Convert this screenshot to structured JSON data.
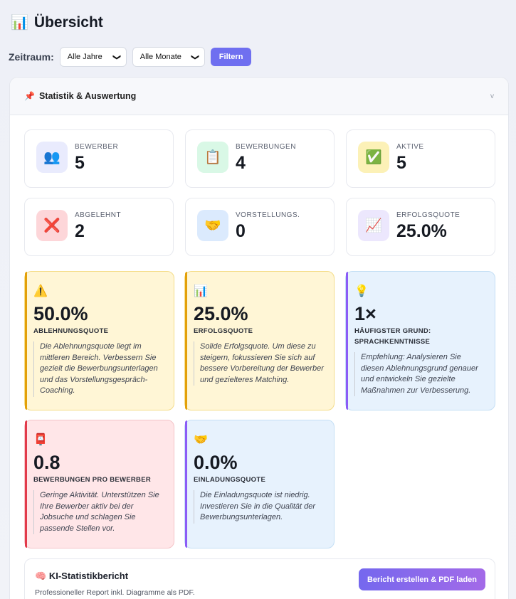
{
  "header": {
    "icon": "📊",
    "title": "Übersicht"
  },
  "filter": {
    "label": "Zeitraum:",
    "year_value": "Alle Jahre",
    "month_value": "Alle Monate",
    "button": "Filtern"
  },
  "panel": {
    "pin_icon": "📌",
    "title": "Statistik & Auswertung",
    "collapse_glyph": "v"
  },
  "stats": [
    {
      "icon": "👥",
      "label": "Bewerber",
      "value": "5",
      "color": "#e9ebfd"
    },
    {
      "icon": "📋",
      "label": "Bewerbungen",
      "value": "4",
      "color": "#d9f8e6"
    },
    {
      "icon": "✅",
      "label": "Aktive",
      "value": "5",
      "color": "#fcf1b7"
    },
    {
      "icon": "❌",
      "label": "Abgelehnt",
      "value": "2",
      "color": "#fdd6d9"
    },
    {
      "icon": "🤝",
      "label": "Vorstellungs.",
      "value": "0",
      "color": "#dbeafd"
    },
    {
      "icon": "📈",
      "label": "Erfolgsquote",
      "value": "25.0%",
      "color": "#ece7fd"
    }
  ],
  "insights": [
    {
      "icon": "⚠️",
      "value": "50.0%",
      "label": "Ablehnungsquote",
      "text": "Die Ablehnungsquote liegt im mittleren Bereich. Verbessern Sie gezielt die Bewerbungsunterlagen und das Vorstellungsgespräch-Coaching.",
      "accent": "#e3a008"
    },
    {
      "icon": "📊",
      "value": "25.0%",
      "label": "Erfolgsquote",
      "text": "Solide Erfolgsquote. Um diese zu steigern, fokussieren Sie sich auf bessere Vorbereitung der Bewerber und gezielteres Matching.",
      "accent": "#e3a008"
    },
    {
      "icon": "💡",
      "value": "1×",
      "label": "Häufigster Grund: Sprachkenntnisse",
      "text": "Empfehlung: Analysieren Sie diesen Ablehnungsgrund genauer und entwickeln Sie gezielte Maßnahmen zur Verbesserung.",
      "accent": "#8b5cf6"
    },
    {
      "icon": "📮",
      "value": "0.8",
      "label": "Bewerbungen pro Bewerber",
      "text": "Geringe Aktivität. Unterstützen Sie Ihre Bewerber aktiv bei der Jobsuche und schlagen Sie passende Stellen vor.",
      "accent": "#e23a4a"
    },
    {
      "icon": "🤝",
      "value": "0.0%",
      "label": "Einladungsquote",
      "text": "Die Einladungsquote ist niedrig. Investieren Sie in die Qualität der Bewerbungsunterlagen.",
      "accent": "#8b5cf6"
    }
  ],
  "report": {
    "icon": "🧠",
    "title": "KI-Statistikbericht",
    "subtitle": "Professioneller Report inkl. Diagramme als PDF.",
    "button": "Bericht erstellen & PDF laden"
  }
}
